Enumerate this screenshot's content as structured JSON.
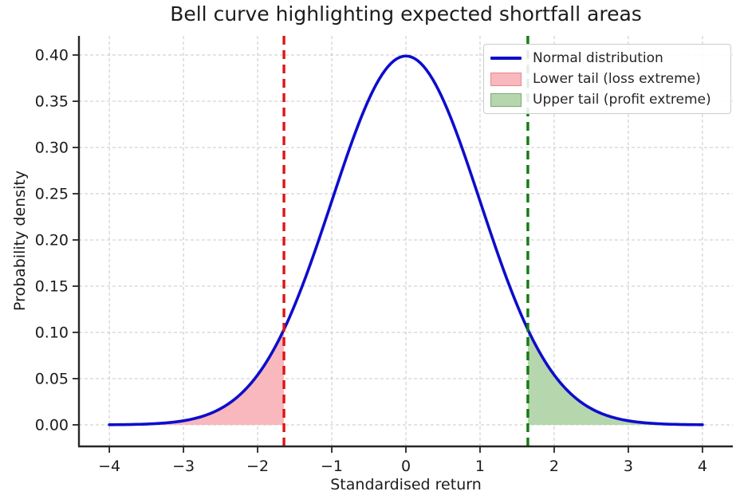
{
  "title": "Bell curve highlighting expected shortfall areas",
  "axes": {
    "xlabel": "Standardised return",
    "ylabel": "Probability density"
  },
  "legend": {
    "position": "upper right",
    "items": [
      {
        "label": "Normal distribution",
        "type": "line",
        "color": "#0d0dcc"
      },
      {
        "label": "Lower tail (loss extreme)",
        "type": "patch",
        "fill": "#f8b8bd",
        "edge": "#e58790"
      },
      {
        "label": "Upper tail (profit extreme)",
        "type": "patch",
        "fill": "#b6d6ae",
        "edge": "#79aa72"
      }
    ]
  },
  "chart_data": {
    "type": "line",
    "title": "Bell curve highlighting expected shortfall areas",
    "xlabel": "Standardised return",
    "ylabel": "Probability density",
    "distribution": {
      "name": "standard_normal",
      "mean": 0,
      "sd": 1
    },
    "curve_label": "Normal distribution",
    "curve_color": "#0d0dcc",
    "curve_domain": [
      -4,
      4
    ],
    "xlim": [
      -4.41,
      4.41
    ],
    "ylim": [
      -0.0233,
      0.4207
    ],
    "x_ticks": [
      -4,
      -3,
      -2,
      -1,
      0,
      1,
      2,
      3,
      4
    ],
    "x_tick_labels": [
      "−4",
      "−3",
      "−2",
      "−1",
      "0",
      "1",
      "2",
      "3",
      "4"
    ],
    "y_ticks": [
      0,
      0.05,
      0.1,
      0.15,
      0.2,
      0.25,
      0.3,
      0.35,
      0.4
    ],
    "y_tick_labels": [
      "0.00",
      "0.05",
      "0.10",
      "0.15",
      "0.20",
      "0.25",
      "0.30",
      "0.35",
      "0.40"
    ],
    "shaded_regions": [
      {
        "name": "lower-tail",
        "label": "Lower tail (loss extreme)",
        "from": -4,
        "to": -1.645,
        "fill": "#f8b8bd"
      },
      {
        "name": "upper-tail",
        "label": "Upper tail (profit extreme)",
        "from": 1.645,
        "to": 4,
        "fill": "#b6d6ae"
      }
    ],
    "vlines": [
      {
        "name": "lower-threshold-line",
        "x": -1.645,
        "color": "#dd1515",
        "style": "dashed"
      },
      {
        "name": "upper-threshold-line",
        "x": 1.645,
        "color": "#107c10",
        "style": "dashed"
      }
    ],
    "curve_samples": {
      "x": [
        -4,
        -3.5,
        -3,
        -2.5,
        -2,
        -1.645,
        -1.5,
        -1,
        -0.5,
        0,
        0.5,
        1,
        1.5,
        1.645,
        2,
        2.5,
        3,
        3.5,
        4
      ],
      "pdf": [
        0.00013,
        0.00087,
        0.00443,
        0.01753,
        0.05399,
        0.10311,
        0.12952,
        0.24197,
        0.35207,
        0.39894,
        0.35207,
        0.24197,
        0.12952,
        0.10311,
        0.05399,
        0.01753,
        0.00443,
        0.00087,
        0.00013
      ]
    },
    "grid": {
      "visible": true,
      "style": "dashed",
      "color": "#c8c8c8"
    },
    "spine_color": "#262626",
    "tick_color": "#1c1c1c",
    "legend_position": "upper right"
  }
}
